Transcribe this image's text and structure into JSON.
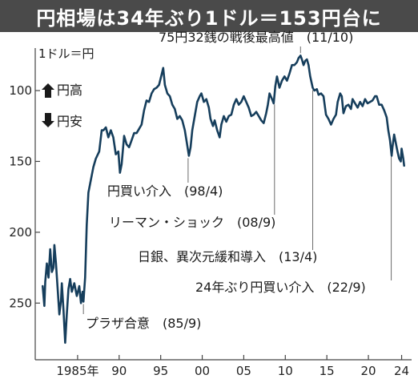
{
  "title": "円相場は34年ぶり1ドル＝153円台に",
  "chart_data": {
    "type": "line",
    "unit_label": "1ドル＝円",
    "legend": [
      {
        "icon": "arrow-up-icon",
        "label": "円高"
      },
      {
        "icon": "arrow-down-icon",
        "label": "円安"
      }
    ],
    "y_axis": {
      "inverted": true,
      "range": [
        70,
        290
      ],
      "ticks": [
        100,
        150,
        200,
        250
      ]
    },
    "x_axis": {
      "range": [
        1979.9,
        2025.2
      ],
      "ticks": [
        {
          "year": 1985,
          "label": "1985年"
        },
        {
          "year": 1990,
          "label": "90"
        },
        {
          "year": 1995,
          "label": "95"
        },
        {
          "year": 2000,
          "label": "00"
        },
        {
          "year": 2005,
          "label": "05"
        },
        {
          "year": 2010,
          "label": "10"
        },
        {
          "year": 2015,
          "label": "15"
        },
        {
          "year": 2020,
          "label": "20"
        },
        {
          "year": 2024,
          "label": "24"
        }
      ]
    },
    "series": [
      {
        "color": "#163e5c",
        "points": [
          [
            1980.8,
            238
          ],
          [
            1981.0,
            252
          ],
          [
            1981.1,
            235
          ],
          [
            1981.3,
            222
          ],
          [
            1981.5,
            232
          ],
          [
            1981.7,
            212
          ],
          [
            1981.9,
            228
          ],
          [
            1982.1,
            225
          ],
          [
            1982.2,
            209
          ],
          [
            1982.4,
            222
          ],
          [
            1982.6,
            240
          ],
          [
            1982.8,
            258
          ],
          [
            1983.0,
            248
          ],
          [
            1983.1,
            236
          ],
          [
            1983.3,
            255
          ],
          [
            1983.5,
            278
          ],
          [
            1983.7,
            258
          ],
          [
            1983.9,
            240
          ],
          [
            1984.1,
            233
          ],
          [
            1984.3,
            242
          ],
          [
            1984.6,
            236
          ],
          [
            1984.9,
            245
          ],
          [
            1985.2,
            238
          ],
          [
            1985.4,
            250
          ],
          [
            1985.6,
            242
          ],
          [
            1985.7,
            249
          ],
          [
            1985.9,
            232
          ],
          [
            1986.1,
            195
          ],
          [
            1986.3,
            172
          ],
          [
            1986.6,
            163
          ],
          [
            1986.9,
            154
          ],
          [
            1987.2,
            148
          ],
          [
            1987.6,
            143
          ],
          [
            1987.9,
            128
          ],
          [
            1988.1,
            128
          ],
          [
            1988.4,
            126
          ],
          [
            1988.7,
            133
          ],
          [
            1989.0,
            128
          ],
          [
            1989.3,
            133
          ],
          [
            1989.6,
            145
          ],
          [
            1989.9,
            143
          ],
          [
            1990.1,
            158
          ],
          [
            1990.3,
            152
          ],
          [
            1990.6,
            132
          ],
          [
            1990.9,
            138
          ],
          [
            1991.2,
            140
          ],
          [
            1991.5,
            135
          ],
          [
            1991.8,
            130
          ],
          [
            1992.1,
            130
          ],
          [
            1992.4,
            127
          ],
          [
            1992.7,
            124
          ],
          [
            1993.0,
            114
          ],
          [
            1993.3,
            107
          ],
          [
            1993.6,
            108
          ],
          [
            1993.9,
            102
          ],
          [
            1994.2,
            99
          ],
          [
            1994.5,
            98
          ],
          [
            1994.8,
            96
          ],
          [
            1995.1,
            89
          ],
          [
            1995.3,
            84
          ],
          [
            1995.5,
            96
          ],
          [
            1995.8,
            102
          ],
          [
            1996.1,
            104
          ],
          [
            1996.4,
            110
          ],
          [
            1996.7,
            113
          ],
          [
            1997.0,
            120
          ],
          [
            1997.3,
            118
          ],
          [
            1997.6,
            121
          ],
          [
            1997.9,
            128
          ],
          [
            1998.1,
            135
          ],
          [
            1998.4,
            146
          ],
          [
            1998.6,
            140
          ],
          [
            1998.8,
            128
          ],
          [
            1999.1,
            118
          ],
          [
            1999.4,
            108
          ],
          [
            1999.7,
            104
          ],
          [
            1999.9,
            102
          ],
          [
            2000.2,
            108
          ],
          [
            2000.5,
            106
          ],
          [
            2000.8,
            112
          ],
          [
            2001.0,
            120
          ],
          [
            2001.3,
            125
          ],
          [
            2001.5,
            121
          ],
          [
            2001.8,
            128
          ],
          [
            2002.1,
            133
          ],
          [
            2002.3,
            124
          ],
          [
            2002.6,
            118
          ],
          [
            2002.9,
            122
          ],
          [
            2003.2,
            118
          ],
          [
            2003.5,
            117
          ],
          [
            2003.8,
            110
          ],
          [
            2004.1,
            106
          ],
          [
            2004.4,
            110
          ],
          [
            2004.7,
            108
          ],
          [
            2005.0,
            104
          ],
          [
            2005.3,
            108
          ],
          [
            2005.6,
            112
          ],
          [
            2005.9,
            118
          ],
          [
            2006.2,
            117
          ],
          [
            2006.5,
            115
          ],
          [
            2006.8,
            118
          ],
          [
            2007.1,
            121
          ],
          [
            2007.4,
            123
          ],
          [
            2007.7,
            116
          ],
          [
            2007.9,
            110
          ],
          [
            2008.1,
            102
          ],
          [
            2008.4,
            106
          ],
          [
            2008.6,
            109
          ],
          [
            2008.8,
            97
          ],
          [
            2009.0,
            90
          ],
          [
            2009.3,
            98
          ],
          [
            2009.6,
            93
          ],
          [
            2009.9,
            90
          ],
          [
            2010.2,
            93
          ],
          [
            2010.5,
            88
          ],
          [
            2010.8,
            82
          ],
          [
            2011.1,
            82
          ],
          [
            2011.4,
            80
          ],
          [
            2011.6,
            77
          ],
          [
            2011.83,
            75.3
          ],
          [
            2012.0,
            78
          ],
          [
            2012.2,
            82
          ],
          [
            2012.4,
            79
          ],
          [
            2012.6,
            78
          ],
          [
            2012.8,
            82
          ],
          [
            2013.0,
            90
          ],
          [
            2013.3,
            98
          ],
          [
            2013.5,
            100
          ],
          [
            2013.8,
            99
          ],
          [
            2014.0,
            103
          ],
          [
            2014.3,
            102
          ],
          [
            2014.6,
            104
          ],
          [
            2014.9,
            117
          ],
          [
            2015.2,
            120
          ],
          [
            2015.5,
            124
          ],
          [
            2015.8,
            120
          ],
          [
            2016.1,
            117
          ],
          [
            2016.3,
            108
          ],
          [
            2016.6,
            102
          ],
          [
            2016.8,
            104
          ],
          [
            2017.0,
            116
          ],
          [
            2017.3,
            111
          ],
          [
            2017.6,
            110
          ],
          [
            2017.9,
            113
          ],
          [
            2018.1,
            106
          ],
          [
            2018.4,
            109
          ],
          [
            2018.7,
            112
          ],
          [
            2019.0,
            108
          ],
          [
            2019.3,
            111
          ],
          [
            2019.6,
            106
          ],
          [
            2019.9,
            109
          ],
          [
            2020.2,
            108
          ],
          [
            2020.5,
            107
          ],
          [
            2020.8,
            104
          ],
          [
            2021.0,
            104
          ],
          [
            2021.3,
            110
          ],
          [
            2021.6,
            110
          ],
          [
            2021.9,
            114
          ],
          [
            2022.2,
            119
          ],
          [
            2022.4,
            128
          ],
          [
            2022.6,
            135
          ],
          [
            2022.8,
            146
          ],
          [
            2022.9,
            140
          ],
          [
            2023.1,
            131
          ],
          [
            2023.3,
            137
          ],
          [
            2023.5,
            143
          ],
          [
            2023.7,
            148
          ],
          [
            2023.9,
            150
          ],
          [
            2024.0,
            141
          ],
          [
            2024.2,
            148
          ],
          [
            2024.3,
            153
          ]
        ]
      }
    ],
    "annotations": [
      {
        "text": "75円32銭の戦後最高値　(11/10)",
        "year": 2011.83,
        "value": 75.3
      },
      {
        "text": "円買い介入　(98/4)",
        "year": 1998.3,
        "value": 146
      },
      {
        "text": "リーマン・ショック　(08/9)",
        "year": 2008.7,
        "value": 108
      },
      {
        "text": "日銀、異次元緩和導入　(13/4)",
        "year": 2013.3,
        "value": 98
      },
      {
        "text": "24年ぶり円買い介入　(22/9)",
        "year": 2022.75,
        "value": 145
      },
      {
        "text": "プラザ合意　(85/9)",
        "year": 1985.7,
        "value": 249
      }
    ]
  }
}
